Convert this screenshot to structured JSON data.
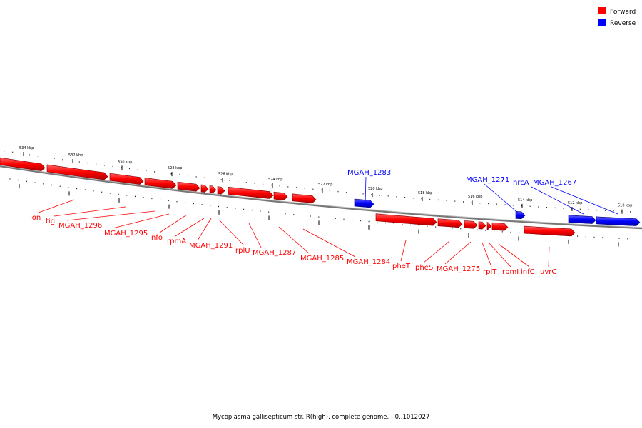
{
  "legend": {
    "forward": {
      "label": "Forward",
      "color": "#ff0000"
    },
    "reverse": {
      "label": "Reverse",
      "color": "#0000ff"
    }
  },
  "caption": "Mycoplasma gallisepticum str. R(high), complete genome. - 0..1012027",
  "kbp_ticks": [
    "534 kbp",
    "532 kbp",
    "530 kbp",
    "528 kbp",
    "526 kbp",
    "524 kbp",
    "522 kbp",
    "520 kbp",
    "518 kbp",
    "516 kbp",
    "514 kbp",
    "512 kbp",
    "510 kbp"
  ],
  "genes": [
    {
      "label": "lon",
      "strand": "forward"
    },
    {
      "label": "tig",
      "strand": "forward"
    },
    {
      "label": "MGAH_1296",
      "strand": "forward"
    },
    {
      "label": "MGAH_1295",
      "strand": "forward"
    },
    {
      "label": "nfo",
      "strand": "forward"
    },
    {
      "label": "rpmA",
      "strand": "forward"
    },
    {
      "label": "MGAH_1291",
      "strand": "forward"
    },
    {
      "label": "rplU",
      "strand": "forward"
    },
    {
      "label": "MGAH_1287",
      "strand": "forward"
    },
    {
      "label": "MGAH_1285",
      "strand": "forward"
    },
    {
      "label": "MGAH_1284",
      "strand": "forward"
    },
    {
      "label": "pheT",
      "strand": "forward"
    },
    {
      "label": "pheS",
      "strand": "forward"
    },
    {
      "label": "MGAH_1275",
      "strand": "forward"
    },
    {
      "label": "rplT",
      "strand": "forward"
    },
    {
      "label": "rpmI",
      "strand": "forward"
    },
    {
      "label": "infC",
      "strand": "forward"
    },
    {
      "label": "uvrC",
      "strand": "forward"
    },
    {
      "label": "MGAH_1283",
      "strand": "reverse"
    },
    {
      "label": "MGAH_1271",
      "strand": "reverse"
    },
    {
      "label": "hrcA",
      "strand": "reverse"
    },
    {
      "label": "MGAH_1267",
      "strand": "reverse"
    }
  ]
}
